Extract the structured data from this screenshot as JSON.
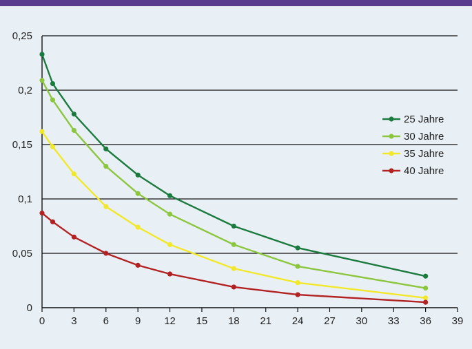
{
  "chart_data": {
    "type": "line",
    "title": "",
    "xlabel": "",
    "ylabel": "",
    "xlim": [
      0,
      39
    ],
    "ylim": [
      0,
      0.25
    ],
    "x_ticks": [
      "0",
      "3",
      "6",
      "9",
      "12",
      "15",
      "18",
      "21",
      "24",
      "27",
      "30",
      "33",
      "36",
      "39"
    ],
    "y_ticks": [
      "0",
      "0,05",
      "0,1",
      "0,15",
      "0,2",
      "0,25"
    ],
    "grid": "horizontal",
    "legend_position": "right",
    "x": [
      0,
      1,
      3,
      6,
      9,
      12,
      18,
      24,
      36
    ],
    "series": [
      {
        "name": "25 Jahre",
        "color": "#1b7a3e",
        "values": [
          0.233,
          0.206,
          0.178,
          0.146,
          0.122,
          0.103,
          0.075,
          0.055,
          0.029
        ]
      },
      {
        "name": "30 Jahre",
        "color": "#8cc63f",
        "values": [
          0.209,
          0.191,
          0.163,
          0.13,
          0.105,
          0.086,
          0.058,
          0.038,
          0.018
        ]
      },
      {
        "name": "35 Jahre",
        "color": "#f2e82a",
        "values": [
          0.162,
          0.148,
          0.123,
          0.093,
          0.074,
          0.058,
          0.036,
          0.023,
          0.009
        ]
      },
      {
        "name": "40 Jahre",
        "color": "#b22222",
        "values": [
          0.087,
          0.079,
          0.065,
          0.05,
          0.039,
          0.031,
          0.019,
          0.012,
          0.005
        ]
      }
    ]
  }
}
